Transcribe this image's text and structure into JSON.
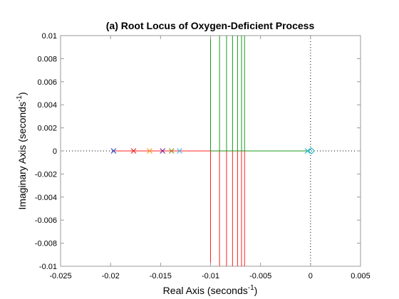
{
  "chart_data": {
    "type": "scatter",
    "title": "(a) Root Locus of Oxygen-Deficient Process",
    "xlabel": "Real Axis (seconds",
    "ylabel": "Imaginary Axis (seconds",
    "label_superscript": "-1",
    "label_close": ")",
    "xlim": [
      -0.025,
      0.005
    ],
    "ylim": [
      -0.01,
      0.01
    ],
    "x_ticks": [
      -0.025,
      -0.02,
      -0.015,
      -0.01,
      -0.005,
      0,
      0.005
    ],
    "x_tick_labels": [
      "-0.025",
      "-0.02",
      "-0.015",
      "-0.01",
      "-0.005",
      "0",
      "0.005"
    ],
    "y_ticks": [
      0.01,
      0.008,
      0.006,
      0.004,
      0.002,
      0,
      -0.002,
      -0.004,
      -0.006,
      -0.008,
      -0.01
    ],
    "y_tick_labels": [
      "0.01",
      "0.008",
      "0.006",
      "0.004",
      "0.002",
      "0",
      "-0.002",
      "-0.004",
      "-0.006",
      "-0.008",
      "-0.01"
    ],
    "grid": false,
    "reference_lines": {
      "x": 0,
      "y": 0,
      "style": "dotted"
    },
    "colors": {
      "red": "#ff2020",
      "green": "#1a9a1a",
      "blue_pole": "#2a4fd0",
      "red_pole": "#e83030",
      "orange_pole": "#f0a020",
      "purple_pole": "#7a2aa0",
      "olive_pole": "#909020",
      "cyan_pole": "#58b8e8",
      "zero_marker": "#30b8c8"
    },
    "red_segment": [
      -0.0197,
      -0.01
    ],
    "green_segment": [
      -0.01,
      -0.0003
    ],
    "breakaway_x": [
      -0.01,
      -0.0091,
      -0.0084,
      -0.0078,
      -0.0073,
      -0.0069,
      -0.0066
    ],
    "poles": [
      {
        "x": -0.0197,
        "color": "blue_pole"
      },
      {
        "x": -0.0177,
        "color": "red_pole"
      },
      {
        "x": -0.0161,
        "color": "orange_pole"
      },
      {
        "x": -0.0148,
        "color": "purple_pole"
      },
      {
        "x": -0.0139,
        "color": "olive_pole"
      },
      {
        "x": -0.0131,
        "color": "cyan_pole"
      },
      {
        "x": -0.0003,
        "color": "zero_marker"
      }
    ],
    "zero": {
      "x": 0.0001,
      "y": 0,
      "marker": "diamond",
      "color": "zero_marker"
    }
  }
}
